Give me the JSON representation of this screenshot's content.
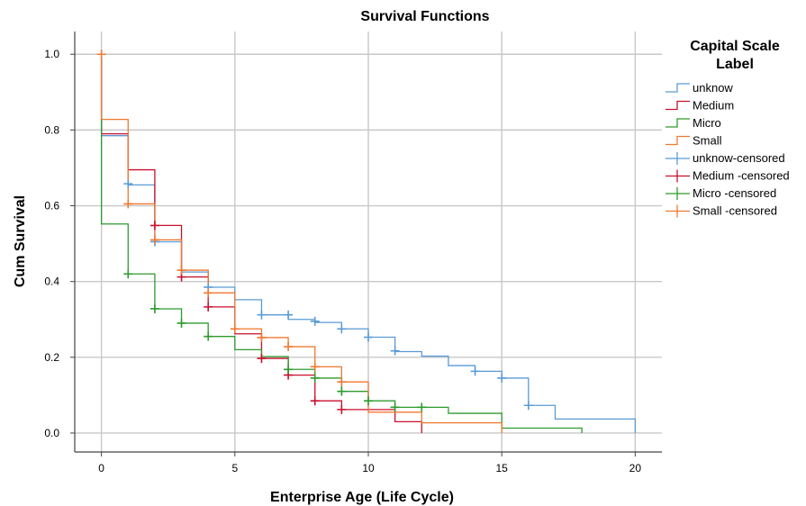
{
  "chart_data": {
    "type": "line",
    "title": "Survival Functions",
    "xlabel": "Enterprise Age (Life Cycle)",
    "ylabel": "Cum Survival",
    "xlim": [
      -1,
      21
    ],
    "ylim": [
      -0.05,
      1.06
    ],
    "xticks": [
      0,
      5,
      10,
      15,
      20
    ],
    "xtick_labels": [
      "0",
      "5",
      "10",
      "15",
      "20"
    ],
    "yticks": [
      0,
      0.2,
      0.4,
      0.6,
      0.8,
      1.0
    ],
    "ytick_labels": [
      "0.0",
      "0.2",
      "0.4",
      "0.6",
      "0.8",
      "1.0"
    ],
    "grid": true,
    "legend": {
      "title_lines": [
        "Capital Scale",
        "Label"
      ],
      "placement": "right"
    },
    "series": [
      {
        "name": "unknow",
        "color": "#5b9bd5",
        "step_x": [
          0,
          1,
          2,
          3,
          4,
          5,
          6,
          7,
          8,
          9,
          10,
          11,
          12,
          13,
          14,
          15,
          16,
          17,
          20
        ],
        "step_y": [
          1.0,
          0.785,
          0.655,
          0.505,
          0.425,
          0.385,
          0.352,
          0.312,
          0.3,
          0.292,
          0.275,
          0.253,
          0.215,
          0.203,
          0.178,
          0.163,
          0.145,
          0.073,
          0.037,
          0.0
        ]
      },
      {
        "name": "Medium",
        "color": "#c8102e",
        "step_x": [
          0,
          1,
          2,
          3,
          4,
          5,
          6,
          7,
          8,
          9,
          10,
          11,
          12
        ],
        "step_y": [
          1.0,
          0.79,
          0.695,
          0.548,
          0.412,
          0.333,
          0.262,
          0.197,
          0.153,
          0.085,
          0.062,
          0.062,
          0.03,
          0.0
        ]
      },
      {
        "name": "Micro",
        "color": "#2e9b2e",
        "step_x": [
          0,
          1,
          2,
          3,
          4,
          5,
          6,
          7,
          8,
          9,
          10,
          11,
          13,
          15,
          18
        ],
        "step_y": [
          1.0,
          0.552,
          0.42,
          0.328,
          0.29,
          0.255,
          0.22,
          0.202,
          0.168,
          0.145,
          0.11,
          0.085,
          0.068,
          0.052,
          0.013,
          0.0
        ]
      },
      {
        "name": "Small",
        "color": "#f07830",
        "step_x": [
          0,
          1,
          2,
          3,
          4,
          5,
          6,
          7,
          8,
          9,
          10,
          12,
          15
        ],
        "step_y": [
          1.0,
          0.828,
          0.605,
          0.51,
          0.43,
          0.37,
          0.275,
          0.252,
          0.228,
          0.175,
          0.135,
          0.055,
          0.027,
          0.0
        ]
      }
    ],
    "censored": [
      {
        "name": "unknow-censored",
        "color": "#5b9bd5",
        "points": [
          [
            1,
            0.658
          ],
          [
            2,
            0.505
          ],
          [
            4,
            0.385
          ],
          [
            6,
            0.312
          ],
          [
            7,
            0.312
          ],
          [
            8,
            0.295
          ],
          [
            9,
            0.275
          ],
          [
            10,
            0.253
          ],
          [
            11,
            0.217
          ],
          [
            14,
            0.163
          ],
          [
            15,
            0.145
          ],
          [
            16,
            0.073
          ]
        ]
      },
      {
        "name": "Medium -censored",
        "color": "#c8102e",
        "points": [
          [
            2,
            0.548
          ],
          [
            3,
            0.412
          ],
          [
            4,
            0.333
          ],
          [
            6,
            0.197
          ],
          [
            7,
            0.153
          ],
          [
            8,
            0.085
          ],
          [
            9,
            0.062
          ]
        ]
      },
      {
        "name": "Micro -censored",
        "color": "#2e9b2e",
        "points": [
          [
            1,
            0.42
          ],
          [
            2,
            0.328
          ],
          [
            3,
            0.29
          ],
          [
            4,
            0.255
          ],
          [
            7,
            0.168
          ],
          [
            8,
            0.145
          ],
          [
            9,
            0.11
          ],
          [
            10,
            0.085
          ],
          [
            11,
            0.068
          ],
          [
            12,
            0.068
          ]
        ]
      },
      {
        "name": "Small -censored",
        "color": "#f07830",
        "points": [
          [
            0,
            1.0
          ],
          [
            1,
            0.605
          ],
          [
            2,
            0.51
          ],
          [
            3,
            0.43
          ],
          [
            4,
            0.37
          ],
          [
            5,
            0.275
          ],
          [
            6,
            0.252
          ],
          [
            7,
            0.228
          ],
          [
            8,
            0.175
          ],
          [
            9,
            0.135
          ]
        ]
      }
    ]
  }
}
